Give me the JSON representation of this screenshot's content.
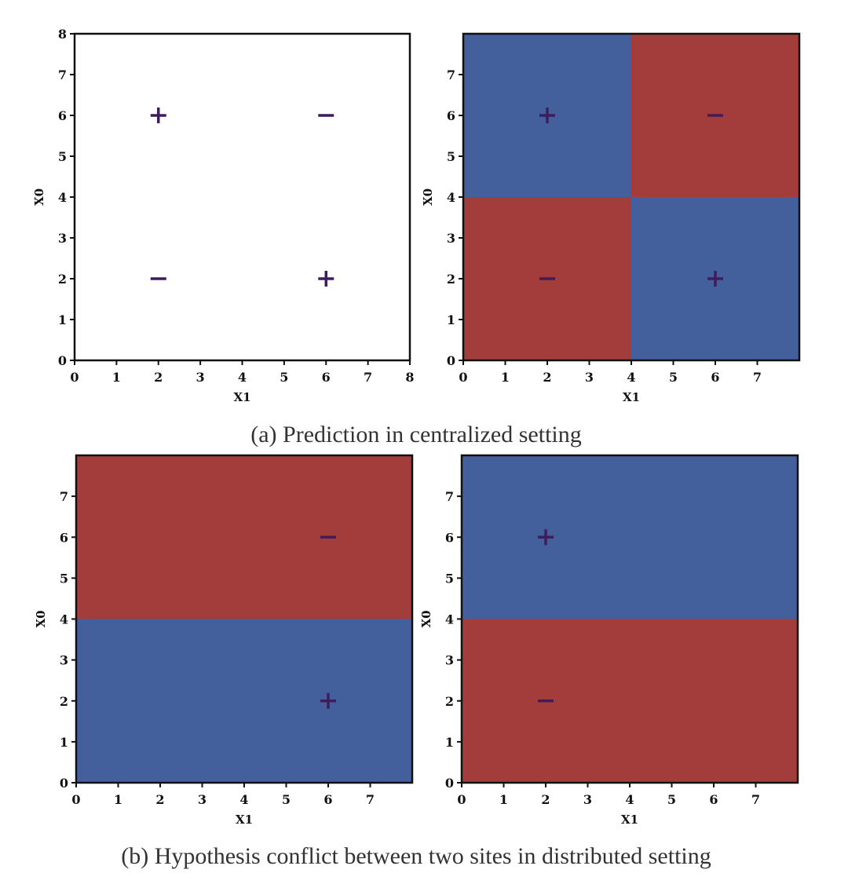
{
  "captions": {
    "a": "(a) Prediction in centralized setting",
    "b": "(b) Hypothesis conflict between two sites in distributed setting"
  },
  "colors": {
    "positive_region": "#44609c",
    "negative_region": "#a33d3b",
    "marker": "#3f1c5c"
  },
  "chart_data": [
    {
      "type": "scatter",
      "xlabel": "X1",
      "ylabel": "X0",
      "xlim": [
        0,
        8
      ],
      "ylim": [
        0,
        8
      ],
      "xticks": [
        "0",
        "1",
        "2",
        "3",
        "4",
        "5",
        "6",
        "7",
        "8"
      ],
      "yticks": [
        "0",
        "1",
        "2",
        "3",
        "4",
        "5",
        "6",
        "7",
        "8"
      ],
      "regions": [],
      "points": [
        {
          "x1": 2,
          "x0": 6,
          "label": "+"
        },
        {
          "x1": 6,
          "x0": 6,
          "label": "−"
        },
        {
          "x1": 2,
          "x0": 2,
          "label": "−"
        },
        {
          "x1": 6,
          "x0": 2,
          "label": "+"
        }
      ]
    },
    {
      "type": "heatmap",
      "xlabel": "X1",
      "ylabel": "X0",
      "xlim": [
        0,
        8
      ],
      "ylim": [
        0,
        8
      ],
      "xticks": [
        "0",
        "1",
        "2",
        "3",
        "4",
        "5",
        "6",
        "7"
      ],
      "yticks": [
        "0",
        "1",
        "2",
        "3",
        "4",
        "5",
        "6",
        "7"
      ],
      "regions": [
        {
          "x1": [
            0,
            4
          ],
          "x0": [
            4,
            8
          ],
          "class": "+"
        },
        {
          "x1": [
            4,
            8
          ],
          "x0": [
            4,
            8
          ],
          "class": "−"
        },
        {
          "x1": [
            0,
            4
          ],
          "x0": [
            0,
            4
          ],
          "class": "−"
        },
        {
          "x1": [
            4,
            8
          ],
          "x0": [
            0,
            4
          ],
          "class": "+"
        }
      ],
      "points": [
        {
          "x1": 2,
          "x0": 6,
          "label": "+"
        },
        {
          "x1": 6,
          "x0": 6,
          "label": "−"
        },
        {
          "x1": 2,
          "x0": 2,
          "label": "−"
        },
        {
          "x1": 6,
          "x0": 2,
          "label": "+"
        }
      ]
    },
    {
      "type": "heatmap",
      "xlabel": "X1",
      "ylabel": "X0",
      "xlim": [
        0,
        8
      ],
      "ylim": [
        0,
        8
      ],
      "xticks": [
        "0",
        "1",
        "2",
        "3",
        "4",
        "5",
        "6",
        "7"
      ],
      "yticks": [
        "0",
        "1",
        "2",
        "3",
        "4",
        "5",
        "6",
        "7"
      ],
      "regions": [
        {
          "x1": [
            0,
            8
          ],
          "x0": [
            4,
            8
          ],
          "class": "−"
        },
        {
          "x1": [
            0,
            8
          ],
          "x0": [
            0,
            4
          ],
          "class": "+"
        }
      ],
      "points": [
        {
          "x1": 6,
          "x0": 6,
          "label": "−"
        },
        {
          "x1": 6,
          "x0": 2,
          "label": "+"
        }
      ]
    },
    {
      "type": "heatmap",
      "xlabel": "X1",
      "ylabel": "X0",
      "xlim": [
        0,
        8
      ],
      "ylim": [
        0,
        8
      ],
      "xticks": [
        "0",
        "1",
        "2",
        "3",
        "4",
        "5",
        "6",
        "7"
      ],
      "yticks": [
        "0",
        "1",
        "2",
        "3",
        "4",
        "5",
        "6",
        "7"
      ],
      "regions": [
        {
          "x1": [
            0,
            8
          ],
          "x0": [
            4,
            8
          ],
          "class": "+"
        },
        {
          "x1": [
            0,
            8
          ],
          "x0": [
            0,
            4
          ],
          "class": "−"
        }
      ],
      "points": [
        {
          "x1": 2,
          "x0": 6,
          "label": "+"
        },
        {
          "x1": 2,
          "x0": 2,
          "label": "−"
        }
      ]
    }
  ]
}
